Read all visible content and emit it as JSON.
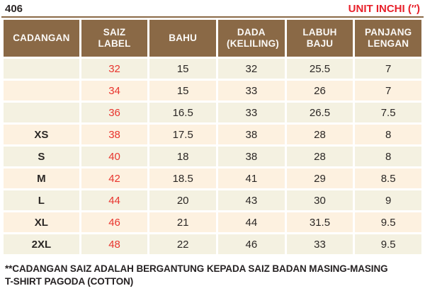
{
  "header": {
    "code": "406",
    "unit_label": "UNIT INCHI (″)"
  },
  "chart_data": {
    "type": "table",
    "title": "T-SHIRT PAGODA (COTTON) size chart",
    "unit": "INCHI (″)",
    "columns": [
      "CADANGAN",
      "SAIZ LABEL",
      "BAHU",
      "DADA (KELILING)",
      "LABUH BAJU",
      "PANJANG LENGAN"
    ],
    "rows": [
      [
        "",
        "32",
        "15",
        "32",
        "25.5",
        "7"
      ],
      [
        "",
        "34",
        "15",
        "33",
        "26",
        "7"
      ],
      [
        "",
        "36",
        "16.5",
        "33",
        "26.5",
        "7.5"
      ],
      [
        "XS",
        "38",
        "17.5",
        "38",
        "28",
        "8"
      ],
      [
        "S",
        "40",
        "18",
        "38",
        "28",
        "8"
      ],
      [
        "M",
        "42",
        "18.5",
        "41",
        "29",
        "8.5"
      ],
      [
        "L",
        "44",
        "20",
        "43",
        "30",
        "9"
      ],
      [
        "XL",
        "46",
        "21",
        "44",
        "31.5",
        "9.5"
      ],
      [
        "2XL",
        "48",
        "22",
        "46",
        "33",
        "9.5"
      ]
    ]
  },
  "footer": {
    "note_line1": "**CADANGAN SAIZ ADALAH BERGANTUNG KEPADA SAIZ BADAN MASING-MASING",
    "note_line2": "T-SHIRT PAGODA (COTTON)"
  },
  "colors": {
    "header_brown": "#8a6946",
    "row_cream": "#f4f1e1",
    "row_peach": "#fdf1e0",
    "accent_red": "#e8202a",
    "number_red": "#e8352e",
    "text_dark": "#2b2725"
  }
}
